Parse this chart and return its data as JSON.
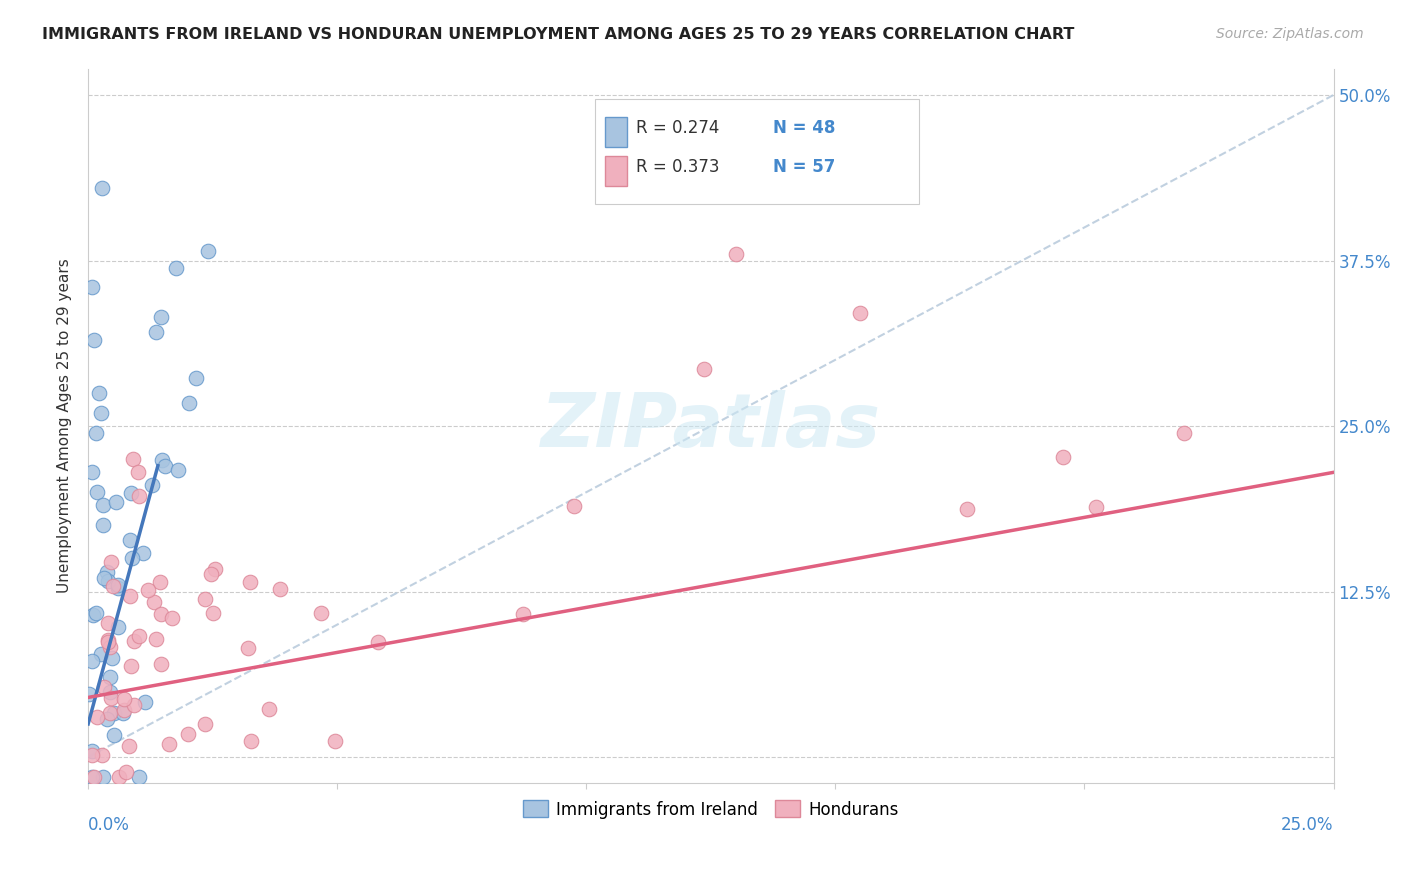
{
  "title": "IMMIGRANTS FROM IRELAND VS HONDURAN UNEMPLOYMENT AMONG AGES 25 TO 29 YEARS CORRELATION CHART",
  "source": "Source: ZipAtlas.com",
  "ylabel": "Unemployment Among Ages 25 to 29 years",
  "xlim": [
    0,
    0.25
  ],
  "ylim": [
    -0.02,
    0.52
  ],
  "yticks": [
    0.0,
    0.125,
    0.25,
    0.375,
    0.5
  ],
  "ytick_labels": [
    "",
    "12.5%",
    "25.0%",
    "37.5%",
    "50.0%"
  ],
  "ireland_color": "#a8c4e0",
  "ireland_edge": "#6699cc",
  "ireland_line": "#4477bb",
  "honduran_color": "#f0b0be",
  "honduran_edge": "#dd8899",
  "honduran_line": "#e06080",
  "diagonal_color": "#bbccdd",
  "legend_r1": "R = 0.274",
  "legend_n1": "N = 48",
  "legend_r2": "R = 0.373",
  "legend_n2": "N = 57"
}
